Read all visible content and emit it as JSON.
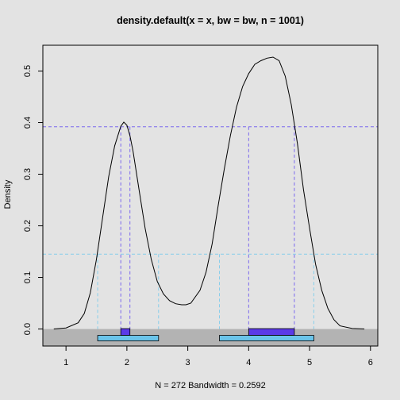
{
  "chart_data": {
    "type": "line",
    "title": "density.default(x = x, bw = bw, n = 1001)",
    "xlabel": "N = 272   Bandwidth = 0.2592",
    "ylabel": "Density",
    "xlim": [
      0.62,
      6.12
    ],
    "ylim": [
      -0.033,
      0.55
    ],
    "x_ticks": [
      1,
      2,
      3,
      4,
      5,
      6
    ],
    "y_ticks": [
      0.0,
      0.1,
      0.2,
      0.3,
      0.4,
      0.5
    ],
    "y_tick_labels": [
      "0.0",
      "0.1",
      "0.2",
      "0.3",
      "0.4",
      "0.5"
    ],
    "series": [
      {
        "x": [
          0.8,
          1.0,
          1.2,
          1.3,
          1.4,
          1.5,
          1.6,
          1.7,
          1.8,
          1.9,
          1.95,
          2.0,
          2.05,
          2.1,
          2.2,
          2.3,
          2.4,
          2.5,
          2.6,
          2.7,
          2.8,
          2.9,
          2.97,
          3.05,
          3.2,
          3.3,
          3.4,
          3.5,
          3.6,
          3.7,
          3.8,
          3.9,
          4.0,
          4.1,
          4.2,
          4.3,
          4.4,
          4.5,
          4.6,
          4.7,
          4.8,
          4.9,
          5.0,
          5.1,
          5.2,
          5.3,
          5.4,
          5.5,
          5.7,
          5.9
        ],
        "y": [
          0.0,
          0.002,
          0.012,
          0.03,
          0.07,
          0.135,
          0.215,
          0.295,
          0.355,
          0.393,
          0.401,
          0.395,
          0.375,
          0.345,
          0.27,
          0.195,
          0.135,
          0.092,
          0.068,
          0.055,
          0.049,
          0.047,
          0.047,
          0.05,
          0.075,
          0.11,
          0.165,
          0.24,
          0.31,
          0.375,
          0.43,
          0.47,
          0.495,
          0.513,
          0.52,
          0.525,
          0.527,
          0.52,
          0.49,
          0.435,
          0.36,
          0.27,
          0.195,
          0.125,
          0.075,
          0.04,
          0.018,
          0.006,
          0.001,
          0.0
        ]
      }
    ],
    "hline_high": 0.392,
    "hline_low": 0.145,
    "segments_high": [
      [
        1.9,
        2.05
      ],
      [
        4.0,
        4.75
      ]
    ],
    "segments_low": [
      [
        1.52,
        2.52
      ],
      [
        3.52,
        5.07
      ]
    ],
    "bottom_band_floor": -0.033,
    "colors": {
      "background": "#e3e3e3",
      "plot_background": "#e3e3e3",
      "bottom_band": "#b3b3b3",
      "curve": "#000000",
      "high_line": "#7b68ee",
      "low_line": "#87ceeb",
      "high_bar": "#5b3ae8",
      "low_bar": "#6ac4ea"
    }
  }
}
